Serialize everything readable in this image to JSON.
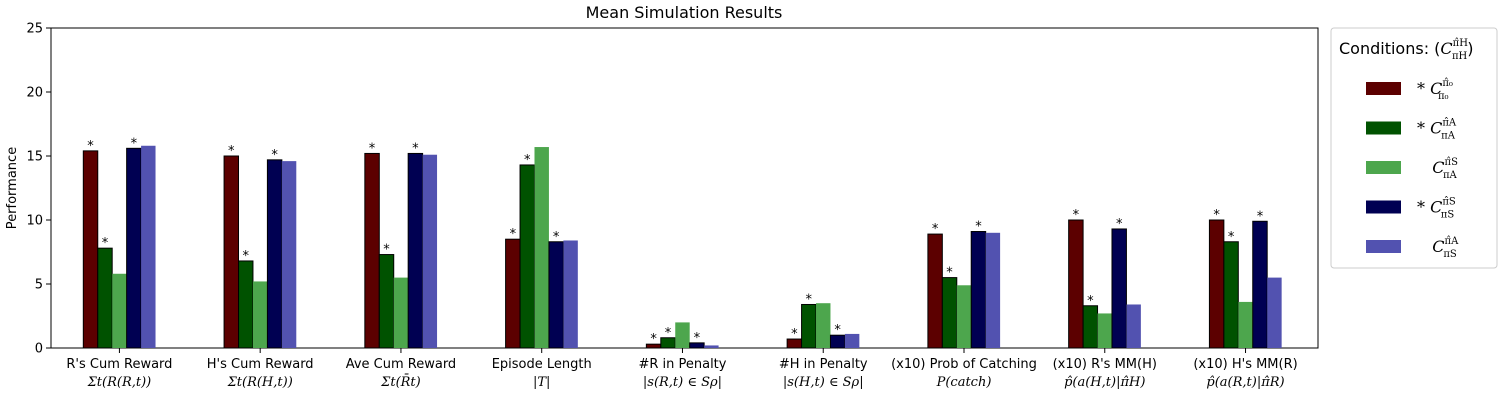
{
  "chart_data": {
    "type": "bar",
    "title": "Mean Simulation Results",
    "ylabel": "Performance",
    "xlabel": "",
    "ylim": [
      0,
      25
    ],
    "yticks": [
      0,
      5,
      10,
      15,
      20,
      25
    ],
    "grid": false,
    "legend": {
      "placement": "outside-right",
      "title": "Conditions: (C^{π̂_H}_{π_H})",
      "entries": [
        {
          "label": "* C^{π̂_0}_{π_0}",
          "prefix": "*",
          "sup": "π̂₀",
          "sub": "π₀",
          "color": "#5c0000"
        },
        {
          "label": "* C^{π̂_A}_{π_A}",
          "prefix": "*",
          "sup": "π̂A",
          "sub": "πA",
          "color": "#005200"
        },
        {
          "label": "C^{π̂_S}_{π_A}",
          "prefix": "",
          "sup": "π̂S",
          "sub": "πA",
          "color": "#4da64d"
        },
        {
          "label": "* C^{π̂_S}_{π_S}",
          "prefix": "*",
          "sup": "π̂S",
          "sub": "πS",
          "color": "#000052"
        },
        {
          "label": "C^{π̂_A}_{π_S}",
          "prefix": "",
          "sup": "π̂A",
          "sub": "πS",
          "color": "#5252b0"
        }
      ]
    },
    "categories": [
      {
        "label": "R's Cum Reward",
        "formula": "Σt(R(R,t))"
      },
      {
        "label": "H's Cum Reward",
        "formula": "Σt(R(H,t))"
      },
      {
        "label": "Ave Cum Reward",
        "formula": "Σt(R̄t)"
      },
      {
        "label": "Episode Length",
        "formula": "|T|"
      },
      {
        "label": "#R in Penalty",
        "formula": "|s(R,t) ∈ Sρ|"
      },
      {
        "label": "#H in Penalty",
        "formula": "|s(H,t) ∈ Sρ|"
      },
      {
        "label": "(x10) Prob of Catching",
        "formula": "P(catch)"
      },
      {
        "label": "(x10) R's MM(H)",
        "formula": "p̂(a(H,t)|π̂H)"
      },
      {
        "label": "(x10) H's MM(R)",
        "formula": "p̂(a(R,t)|π̂R)"
      }
    ],
    "series": [
      {
        "name": "C^{π̂_0}_{π_0}",
        "color": "#5c0000",
        "edge": true,
        "starred": true,
        "values": [
          15.4,
          15.0,
          15.2,
          8.5,
          0.3,
          0.7,
          8.9,
          10.0,
          10.0
        ]
      },
      {
        "name": "C^{π̂_A}_{π_A}",
        "color": "#005200",
        "edge": true,
        "starred": true,
        "values": [
          7.8,
          6.8,
          7.3,
          14.3,
          0.8,
          3.4,
          5.5,
          3.3,
          8.3
        ]
      },
      {
        "name": "C^{π̂_S}_{π_A}",
        "color": "#4da64d",
        "edge": false,
        "starred": false,
        "values": [
          5.8,
          5.2,
          5.5,
          15.7,
          2.0,
          3.5,
          4.9,
          2.7,
          3.6
        ]
      },
      {
        "name": "C^{π̂_S}_{π_S}",
        "color": "#000052",
        "edge": true,
        "starred": true,
        "values": [
          15.6,
          14.7,
          15.2,
          8.3,
          0.4,
          1.0,
          9.1,
          9.3,
          9.9
        ]
      },
      {
        "name": "C^{π̂_A}_{π_S}",
        "color": "#5252b0",
        "edge": false,
        "starred": false,
        "values": [
          15.8,
          14.6,
          15.1,
          8.4,
          0.2,
          1.1,
          9.0,
          3.4,
          5.5
        ]
      }
    ],
    "star_marker": "*"
  }
}
